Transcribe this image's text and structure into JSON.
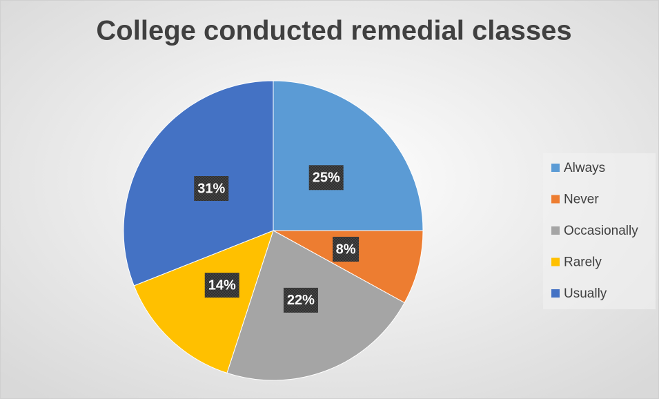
{
  "chart_data": {
    "type": "pie",
    "title": "College conducted remedial classes",
    "categories": [
      "Always",
      "Never",
      "Occasionally",
      "Rarely",
      "Usually"
    ],
    "values": [
      25,
      8,
      22,
      14,
      31
    ],
    "value_labels": [
      "25%",
      "8%",
      "22%",
      "14%",
      "31%"
    ],
    "colors": [
      "#5b9bd5",
      "#ed7d31",
      "#a5a5a5",
      "#ffc000",
      "#4472c4"
    ],
    "legend": "right"
  }
}
